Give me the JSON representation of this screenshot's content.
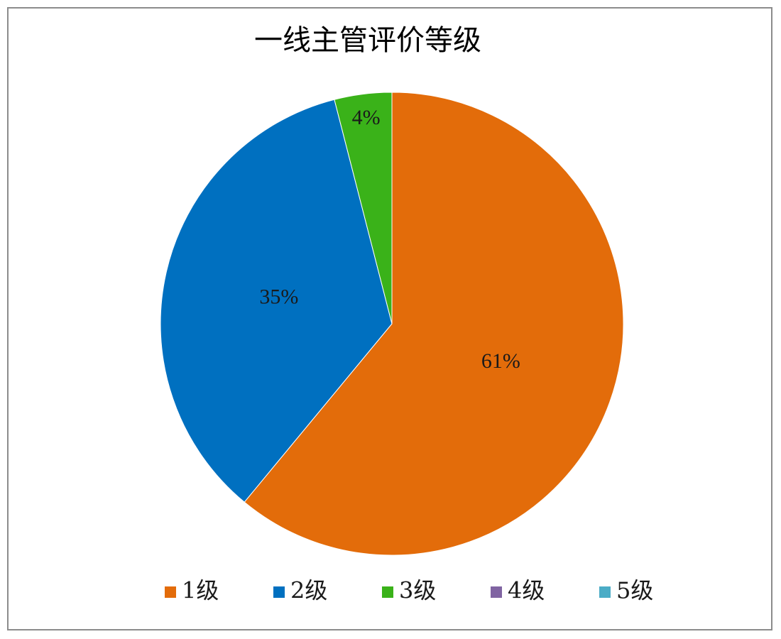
{
  "chart_data": {
    "type": "pie",
    "title": "一线主管评价等级",
    "categories": [
      "1级",
      "2级",
      "3级",
      "4级",
      "5级"
    ],
    "values": [
      61,
      35,
      4,
      0,
      0
    ],
    "labels": [
      "61%",
      "35%",
      "4%",
      "",
      ""
    ],
    "colors": [
      "#E36C0A",
      "#0070C0",
      "#3AB219",
      "#8064A2",
      "#4BACC6"
    ],
    "start_angle_deg": 0,
    "direction": "clockwise",
    "legend_position": "bottom"
  }
}
